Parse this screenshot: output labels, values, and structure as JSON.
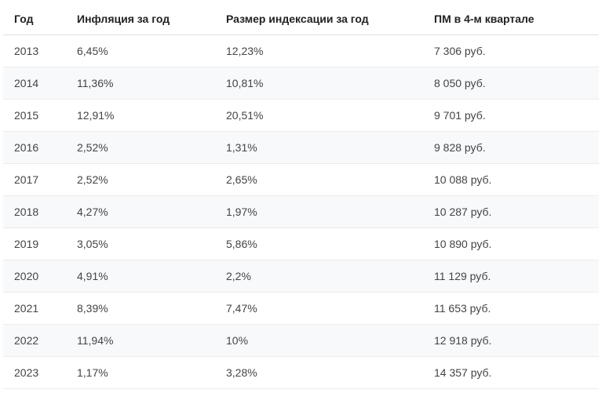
{
  "table": {
    "columns": [
      "Год",
      "Инфляция за год",
      "Размер индексации за год",
      "ПМ в 4-м квартале"
    ],
    "rows": [
      {
        "year": "2013",
        "inflation": "6,45%",
        "indexation": "12,23%",
        "pm": "7 306 руб."
      },
      {
        "year": "2014",
        "inflation": "11,36%",
        "indexation": "10,81%",
        "pm": "8 050 руб."
      },
      {
        "year": "2015",
        "inflation": "12,91%",
        "indexation": "20,51%",
        "pm": "9 701 руб."
      },
      {
        "year": "2016",
        "inflation": "2,52%",
        "indexation": "1,31%",
        "pm": "9 828 руб."
      },
      {
        "year": "2017",
        "inflation": "2,52%",
        "indexation": "2,65%",
        "pm": "10 088 руб."
      },
      {
        "year": "2018",
        "inflation": "4,27%",
        "indexation": "1,97%",
        "pm": "10 287 руб."
      },
      {
        "year": "2019",
        "inflation": "3,05%",
        "indexation": "5,86%",
        "pm": "10 890 руб."
      },
      {
        "year": "2020",
        "inflation": "4,91%",
        "indexation": "2,2%",
        "pm": "11 129 руб."
      },
      {
        "year": "2021",
        "inflation": "8,39%",
        "indexation": "7,47%",
        "pm": "11 653 руб."
      },
      {
        "year": "2022",
        "inflation": "11,94%",
        "indexation": "10%",
        "pm": "12 918 руб."
      },
      {
        "year": "2023",
        "inflation": "1,17%",
        "indexation": "3,28%",
        "pm": "14 357 руб."
      }
    ],
    "header_bg": "#ffffff",
    "row_odd_bg": "#ffffff",
    "row_even_bg": "#f7f9fb",
    "border_color": "#ececec",
    "text_color": "#444444",
    "header_text_color": "#222222",
    "font_size": 14
  }
}
